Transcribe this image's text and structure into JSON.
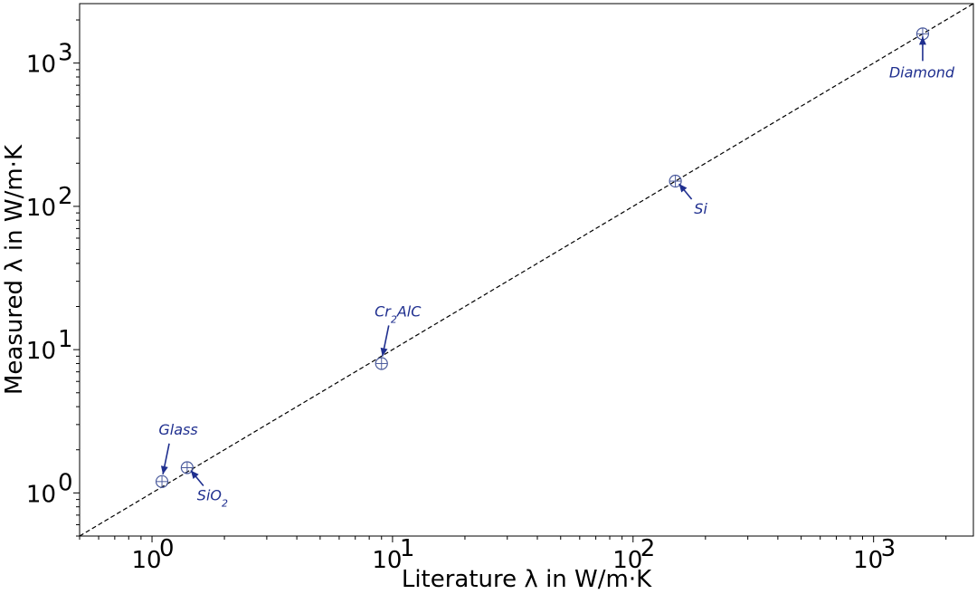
{
  "chart_data": {
    "type": "scatter",
    "title": "",
    "xlabel": "Literature λ in W/m·K",
    "ylabel": "Measured λ in W/m·K",
    "xscale": "log",
    "yscale": "log",
    "xlim": [
      0.5,
      2600
    ],
    "ylim": [
      0.5,
      2600
    ],
    "grid": false,
    "legend": "none",
    "x_ticks": [
      {
        "value": 1,
        "base": "10",
        "exp": "0"
      },
      {
        "value": 10,
        "base": "10",
        "exp": "1"
      },
      {
        "value": 100,
        "base": "10",
        "exp": "2"
      },
      {
        "value": 1000,
        "base": "10",
        "exp": "3"
      }
    ],
    "y_ticks": [
      {
        "value": 1,
        "base": "10",
        "exp": "0"
      },
      {
        "value": 10,
        "base": "10",
        "exp": "1"
      },
      {
        "value": 100,
        "base": "10",
        "exp": "2"
      },
      {
        "value": 1000,
        "base": "10",
        "exp": "3"
      }
    ],
    "reference_line": {
      "type": "y=x",
      "style": "dashed",
      "color": "#000000"
    },
    "marker_color": "#4a5a9c",
    "annotation_color": "#1f2f8f",
    "points": [
      {
        "label": "Glass",
        "label_parts": [
          {
            "t": "Glass"
          }
        ],
        "x": 1.1,
        "y": 1.2,
        "position": "above"
      },
      {
        "label": "SiO2",
        "label_parts": [
          {
            "t": "SiO"
          },
          {
            "t": "2",
            "sub": true
          }
        ],
        "x": 1.4,
        "y": 1.5,
        "position": "below-right"
      },
      {
        "label": "Cr2AlC",
        "label_parts": [
          {
            "t": "Cr"
          },
          {
            "t": "2",
            "sub": true
          },
          {
            "t": "AlC"
          }
        ],
        "x": 9,
        "y": 8,
        "position": "above"
      },
      {
        "label": "Si",
        "label_parts": [
          {
            "t": "Si"
          }
        ],
        "x": 150,
        "y": 150,
        "position": "below-right"
      },
      {
        "label": "Diamond",
        "label_parts": [
          {
            "t": "Diamond"
          }
        ],
        "x": 1600,
        "y": 1600,
        "position": "below"
      }
    ]
  }
}
